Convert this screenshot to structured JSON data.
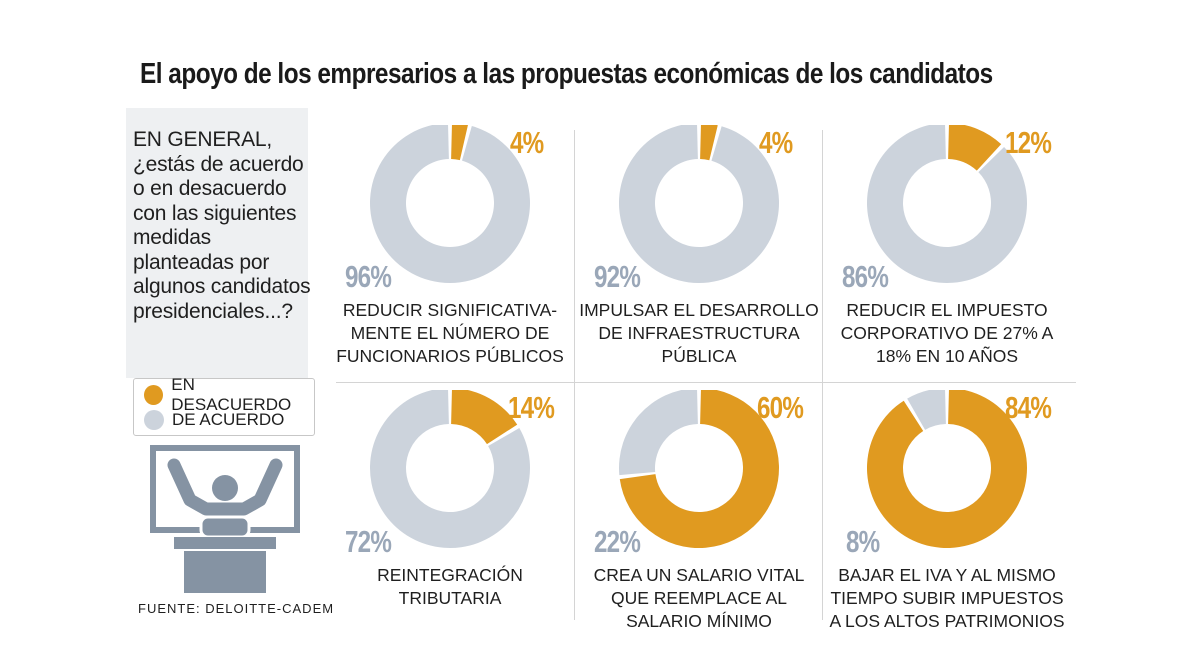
{
  "title": "El apoyo de los empresarios a las propuestas económicas de los candidatos",
  "question": "EN GENERAL, ¿estás de acuerdo o en desacuerdo con las siguientes medidas planteadas por algunos candidatos presidenciales...?",
  "legend": [
    {
      "label": "EN DESACUERDO",
      "color": "#e09a20"
    },
    {
      "label": "DE ACUERDO",
      "color": "#ccd3dc"
    }
  ],
  "source": "FUENTE: DELOITTE-CADEM",
  "icon": "person-at-podium-icon",
  "colors": {
    "disagree": "#e09a20",
    "agree": "#ccd3dc",
    "agree_label": "#9aa7b8"
  },
  "chart_data": {
    "type": "pie",
    "variant": "donut",
    "series_names": [
      "EN DESACUERDO",
      "DE ACUERDO"
    ],
    "charts": [
      {
        "measure": "REDUCIR SIGNIFICATIVA-\nMENTE EL NÚMERO DE\nFUNCIONARIOS PÚBLICOS",
        "disagree": 4,
        "agree": 96,
        "disagree_label": "4%",
        "agree_label": "96%"
      },
      {
        "measure": "IMPULSAR EL DESARROLLO\nDE INFRAESTRUCTURA\nPÚBLICA",
        "disagree": 4,
        "agree": 92,
        "disagree_label": "4%",
        "agree_label": "92%"
      },
      {
        "measure": "REDUCIR EL IMPUESTO\nCORPORATIVO DE 27% A\n18% EN 10 AÑOS",
        "disagree": 12,
        "agree": 86,
        "disagree_label": "12%",
        "agree_label": "86%"
      },
      {
        "measure": "REINTEGRACIÓN\nTRIBUTARIA",
        "disagree": 14,
        "agree": 72,
        "disagree_label": "14%",
        "agree_label": "72%"
      },
      {
        "measure": "CREA UN SALARIO VITAL\nQUE REEMPLACE AL\nSALARIO MÍNIMO",
        "disagree": 60,
        "agree": 22,
        "disagree_label": "60%",
        "agree_label": "22%"
      },
      {
        "measure": "BAJAR EL IVA Y AL MISMO\nTIEMPO SUBIR IMPUESTOS\nA LOS ALTOS PATRIMONIOS",
        "disagree": 84,
        "agree": 8,
        "disagree_label": "84%",
        "agree_label": "8%"
      }
    ]
  }
}
